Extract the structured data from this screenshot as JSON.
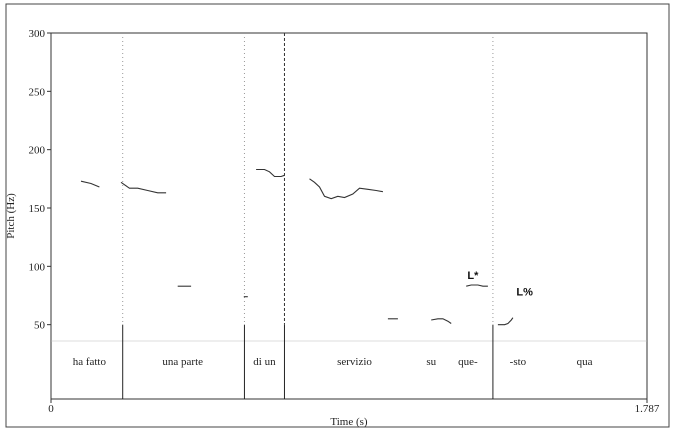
{
  "chart_data": {
    "type": "line",
    "xlabel": "Time (s)",
    "ylabel": "Pitch (Hz)",
    "xlim": [
      0,
      1.787
    ],
    "ylim": [
      0,
      300
    ],
    "x_tick_labels": [
      "0",
      "1.787"
    ],
    "y_ticks": [
      50,
      100,
      150,
      200,
      250,
      300
    ],
    "grid": false,
    "series": [
      {
        "segments": [
          [
            [
              0.09,
              173
            ],
            [
              0.12,
              171
            ],
            [
              0.145,
              168
            ]
          ],
          [
            [
              0.21,
              172
            ],
            [
              0.235,
              167
            ],
            [
              0.26,
              167
            ],
            [
              0.29,
              165
            ],
            [
              0.32,
              163
            ],
            [
              0.345,
              163
            ]
          ],
          [
            [
              0.38,
              83
            ],
            [
              0.42,
              83
            ]
          ],
          [
            [
              0.578,
              74
            ],
            [
              0.59,
              74
            ]
          ],
          [
            [
              0.615,
              183
            ],
            [
              0.64,
              183
            ],
            [
              0.655,
              181
            ],
            [
              0.67,
              177
            ],
            [
              0.69,
              177
            ],
            [
              0.7,
              178
            ]
          ],
          [
            [
              0.775,
              175
            ],
            [
              0.79,
              172
            ],
            [
              0.805,
              168
            ],
            [
              0.82,
              160
            ],
            [
              0.84,
              158
            ],
            [
              0.86,
              160
            ],
            [
              0.88,
              159
            ],
            [
              0.905,
              162
            ],
            [
              0.925,
              167
            ],
            [
              0.95,
              166
            ],
            [
              0.975,
              165
            ],
            [
              0.995,
              164
            ]
          ],
          [
            [
              1.01,
              55
            ],
            [
              1.04,
              55
            ]
          ],
          [
            [
              1.14,
              54
            ],
            [
              1.16,
              55
            ],
            [
              1.175,
              55
            ],
            [
              1.19,
              53
            ],
            [
              1.2,
              51
            ]
          ],
          [
            [
              1.245,
              83
            ],
            [
              1.26,
              84
            ],
            [
              1.28,
              84
            ],
            [
              1.295,
              83
            ],
            [
              1.31,
              83
            ]
          ],
          [
            [
              1.34,
              50
            ],
            [
              1.36,
              50
            ],
            [
              1.37,
              51
            ],
            [
              1.38,
              54
            ],
            [
              1.385,
              56
            ]
          ]
        ]
      }
    ],
    "tone_labels": [
      {
        "text": "L*",
        "x": 1.265,
        "y": 84
      },
      {
        "text": "L%",
        "x": 1.42,
        "y": 70
      }
    ],
    "boundaries": [
      {
        "t": 0.215,
        "style": "dotted"
      },
      {
        "t": 0.215,
        "style": "solid-tier"
      },
      {
        "t": 0.58,
        "style": "dotted"
      },
      {
        "t": 0.58,
        "style": "solid-tier"
      },
      {
        "t": 0.7,
        "style": "dashed"
      },
      {
        "t": 0.7,
        "style": "solid-tier"
      },
      {
        "t": 1.325,
        "style": "dotted"
      },
      {
        "t": 1.325,
        "style": "solid-tier"
      }
    ],
    "word_tier": [
      {
        "text": "ha fatto",
        "t": 0.115
      },
      {
        "text": "una parte",
        "t": 0.395
      },
      {
        "text": "di un",
        "t": 0.64
      },
      {
        "text": "servizio",
        "t": 0.91
      },
      {
        "text": "su",
        "t": 1.14
      },
      {
        "text": "que-",
        "t": 1.25
      },
      {
        "text": "-sto",
        "t": 1.4
      },
      {
        "text": "qua",
        "t": 1.6
      }
    ]
  }
}
